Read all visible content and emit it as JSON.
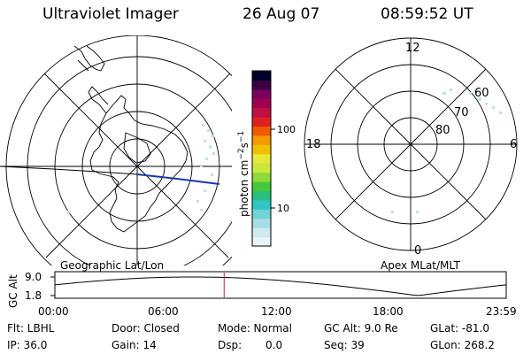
{
  "header": {
    "instrument": "Ultraviolet Imager",
    "date": "26 Aug 07",
    "time": "08:59:52 UT"
  },
  "geo_panel": {
    "label": "Geographic Lat/Lon"
  },
  "apex_panel": {
    "label": "Apex MLat/MLT",
    "mlt_labels": {
      "top": "12",
      "left": "18",
      "right": "6",
      "bottom": "0"
    },
    "lat_labels": [
      "60",
      "70",
      "80"
    ]
  },
  "colorbar": {
    "unit_label": "photon cm",
    "unit_sup1": "−2",
    "unit_mid": "s",
    "unit_sup2": "−1",
    "ticks": [
      "100",
      "10"
    ],
    "colors": [
      "#e8f4f7",
      "#cfe9ee",
      "#a6dde6",
      "#6fd3d8",
      "#2fc6c6",
      "#28c07a",
      "#46c83a",
      "#8fd93a",
      "#c8e83a",
      "#e8e83a",
      "#f0c000",
      "#f39a00",
      "#ef5b00",
      "#e02020",
      "#c01040",
      "#a00050",
      "#7a0060",
      "#3a0040",
      "#00002a"
    ]
  },
  "altitude_plot": {
    "ylabel": "GC Alt",
    "yticks": [
      "9.0",
      "1.8"
    ],
    "xticks": [
      "00:00",
      "06:00",
      "12:00",
      "18:00",
      "23:59"
    ],
    "current_time_hours": 9.0,
    "marker_color": "#d02020"
  },
  "info": {
    "row1": [
      "Flt: LBHL",
      "Door: Closed",
      "Mode: Normal",
      "GC Alt: 9.0 Re",
      "GLat: -81.0"
    ],
    "row2": [
      "IP: 36.0",
      "Gain: 14",
      "Dsp:",
      "0.0",
      "Seq: 39",
      "GLon: 268.2"
    ]
  }
}
